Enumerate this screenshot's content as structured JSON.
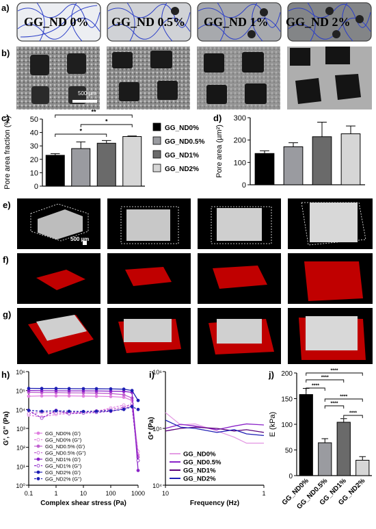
{
  "panel_letters": {
    "a": "a)",
    "b": "b)",
    "c": "c)",
    "d": "d)",
    "e": "e)",
    "f": "f)",
    "g": "g)",
    "h": "h)",
    "i": "i)",
    "j": "j)"
  },
  "schematic": {
    "labels": [
      "GG_ND 0%",
      "GG_ND 0.5%",
      "GG_ND 1%",
      "GG_ND 2%"
    ],
    "fills": [
      "#eceef2",
      "#d0d2d6",
      "#a7a9ad",
      "#838587"
    ],
    "particle_counts": [
      0,
      1,
      2,
      3
    ]
  },
  "sem": {
    "scale_bar": "500 µm"
  },
  "micro_ct": {
    "scale_bar": "500 µm"
  },
  "colors": {
    "nd0": "#000000",
    "nd05": "#9a9ba0",
    "nd1": "#6a6a6a",
    "nd2": "#d6d6d6",
    "scaffold": "#c8c8c8",
    "hydrogel": "#d40000"
  },
  "chart_data": [
    {
      "id": "c",
      "type": "bar",
      "ylabel": "Pore area fraction (%)",
      "ylim": [
        0,
        50
      ],
      "yticks": [
        0,
        10,
        20,
        30,
        40,
        50
      ],
      "categories": [
        "GG_ND0%",
        "GG_ND0.5%",
        "GG_ND1%",
        "GG_ND2%"
      ],
      "values": [
        23,
        28,
        32,
        37
      ],
      "errors": [
        1.2,
        5,
        2,
        0.4
      ],
      "significance": [
        {
          "from": 0,
          "to": 3,
          "label": "**"
        },
        {
          "from": 1,
          "to": 3,
          "label": "*"
        },
        {
          "from": 0,
          "to": 2,
          "label": "*"
        }
      ],
      "legend": [
        "GG_ND0%",
        "GG_ND0.5%",
        "GG_ND1%",
        "GG_ND2%"
      ]
    },
    {
      "id": "d",
      "type": "bar",
      "ylabel": "Pore area (µm²)",
      "ylim": [
        0,
        300
      ],
      "yticks": [
        0,
        100,
        200,
        300
      ],
      "categories": [
        "GG_ND0%",
        "GG_ND0.5%",
        "GG_ND1%",
        "GG_ND2%"
      ],
      "values": [
        140,
        170,
        215,
        228
      ],
      "errors": [
        12,
        18,
        65,
        35
      ]
    },
    {
      "id": "h",
      "type": "line",
      "xlabel": "Complex shear stress (Pa)",
      "ylabel": "G', G'' (Pa)",
      "xscale": "log",
      "yscale": "log",
      "xlim": [
        0.1,
        1000
      ],
      "ylim": [
        1,
        1000000
      ],
      "xticks": [
        "0.1",
        "1",
        "10",
        "100",
        "1000"
      ],
      "yticks": [
        "10⁰",
        "10¹",
        "10²",
        "10³",
        "10⁴",
        "10⁵",
        "10⁶"
      ],
      "series": [
        {
          "name": "GG_ND0% (G')",
          "color": "#e07ee0",
          "marker": "circle-filled",
          "x": [
            0.1,
            0.3,
            1,
            3,
            10,
            30,
            100,
            300,
            600,
            1000
          ],
          "y": [
            50000,
            52000,
            52000,
            52000,
            51000,
            50000,
            48000,
            44000,
            30000,
            40
          ]
        },
        {
          "name": "GG_ND0% (G'')",
          "color": "#e07ee0",
          "marker": "circle-open",
          "x": [
            0.1,
            0.3,
            1,
            3,
            10,
            30,
            100,
            300,
            600,
            1000
          ],
          "y": [
            5000,
            4000,
            5500,
            6000,
            7000,
            8000,
            12000,
            17000,
            14000,
            60
          ]
        },
        {
          "name": "GG_ND0.5% (G')",
          "color": "#c060d0",
          "marker": "diamond-filled",
          "x": [
            0.1,
            0.3,
            1,
            3,
            10,
            30,
            100,
            300,
            600,
            1000
          ],
          "y": [
            80000,
            78000,
            78000,
            76000,
            75000,
            73000,
            70000,
            60000,
            40000,
            30
          ]
        },
        {
          "name": "GG_ND0.5% (G'')",
          "color": "#c060d0",
          "marker": "diamond-open",
          "x": [
            0.1,
            0.3,
            1,
            3,
            10,
            30,
            100,
            300,
            600,
            1000
          ],
          "y": [
            6000,
            7000,
            6500,
            7000,
            7500,
            8500,
            10000,
            13000,
            20000,
            20
          ]
        },
        {
          "name": "GG_ND1% (G')",
          "color": "#8a22c8",
          "marker": "diamond-filled",
          "x": [
            0.1,
            0.3,
            1,
            3,
            10,
            30,
            100,
            300,
            600,
            1000
          ],
          "y": [
            100000,
            98000,
            97000,
            96000,
            96000,
            95000,
            93000,
            90000,
            80000,
            6
          ]
        },
        {
          "name": "GG_ND1% (G'')",
          "color": "#8a22c8",
          "marker": "diamond-open",
          "x": [
            0.1,
            0.3,
            1,
            3,
            10,
            30,
            100,
            300,
            600,
            1000
          ],
          "y": [
            9000,
            3500,
            9000,
            6000,
            6500,
            7000,
            8000,
            11000,
            15000,
            20
          ]
        },
        {
          "name": "GG_ND2% (G')",
          "color": "#1e1eb4",
          "marker": "dot",
          "x": [
            0.1,
            0.3,
            1,
            3,
            10,
            30,
            100,
            300,
            600,
            1000
          ],
          "y": [
            130000,
            128000,
            128000,
            126000,
            125000,
            124000,
            122000,
            118000,
            100000,
            30000
          ]
        },
        {
          "name": "GG_ND2% (G'')",
          "color": "#1e1eb4",
          "marker": "dot-dashed",
          "x": [
            0.1,
            0.3,
            1,
            3,
            10,
            30,
            100,
            300,
            600,
            1000
          ],
          "y": [
            9000,
            8000,
            8500,
            8000,
            7800,
            8000,
            8500,
            10000,
            14000,
            10000
          ]
        }
      ]
    },
    {
      "id": "i",
      "type": "line",
      "xlabel": "Frequency (Hz)",
      "ylabel": "G* (Pa)",
      "xscale": "log",
      "yscale": "log",
      "xlim": [
        10,
        1
      ],
      "ylim": [
        10000,
        1000000
      ],
      "xticks": [
        "10",
        "1"
      ],
      "yticks": [
        "10⁴",
        "10⁵",
        "10⁶"
      ],
      "series": [
        {
          "name": "GG_ND0%",
          "color": "#e49ce4",
          "x": [
            10,
            7,
            5,
            3,
            2,
            1.5,
            1
          ],
          "y": [
            190000,
            115000,
            120000,
            90000,
            70000,
            55000,
            55000
          ]
        },
        {
          "name": "GG_ND0.5%",
          "color": "#8a22c8",
          "x": [
            10,
            7,
            5,
            3,
            2,
            1.5,
            1
          ],
          "y": [
            100000,
            118000,
            110000,
            95000,
            110000,
            120000,
            115000
          ]
        },
        {
          "name": "GG_ND1%",
          "color": "#5a007a",
          "x": [
            10,
            7,
            5,
            3,
            2,
            1.5,
            1
          ],
          "y": [
            90000,
            100000,
            105000,
            100000,
            90000,
            95000,
            85000
          ]
        },
        {
          "name": "GG_ND2%",
          "color": "#1e1eb4",
          "x": [
            10,
            7,
            5,
            3,
            2,
            1.5,
            1
          ],
          "y": [
            140000,
            105000,
            100000,
            85000,
            95000,
            80000,
            75000
          ]
        }
      ],
      "legend": [
        "GG_ND0%",
        "GG_ND0.5%",
        "GG_ND1%",
        "GG_ND2%"
      ]
    },
    {
      "id": "j",
      "type": "bar",
      "ylabel": "E (kPa)",
      "ylim": [
        0,
        200
      ],
      "yticks": [
        0,
        50,
        100,
        150,
        200
      ],
      "categories": [
        "GG_ND0%",
        "GG_ND0.5%",
        "GG_ND1%",
        "GG_ND2%"
      ],
      "values": [
        158,
        64,
        104,
        30
      ],
      "errors": [
        12,
        8,
        7,
        7
      ],
      "significance": [
        {
          "from": 0,
          "to": 3,
          "label": "****"
        },
        {
          "from": 0,
          "to": 2,
          "label": "****"
        },
        {
          "from": 0,
          "to": 1,
          "label": "****"
        },
        {
          "from": 1,
          "to": 3,
          "label": "****"
        },
        {
          "from": 1,
          "to": 2,
          "label": "****"
        },
        {
          "from": 2,
          "to": 3,
          "label": "****"
        }
      ]
    }
  ]
}
